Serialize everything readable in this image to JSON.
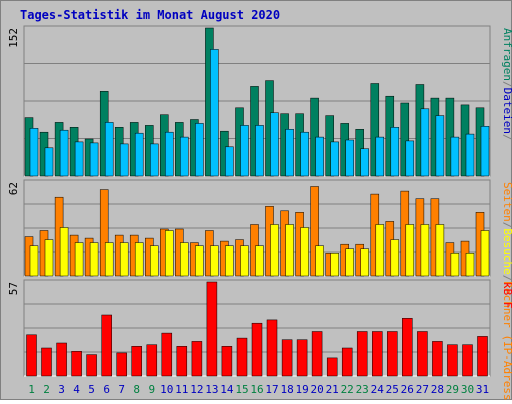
{
  "chart_data": {
    "type": "bar",
    "title": "Tages-Statistik im Monat August 2020",
    "categories": [
      "1",
      "2",
      "3",
      "4",
      "5",
      "6",
      "7",
      "8",
      "9",
      "10",
      "11",
      "12",
      "13",
      "14",
      "15",
      "16",
      "17",
      "18",
      "19",
      "20",
      "21",
      "22",
      "23",
      "24",
      "25",
      "26",
      "27",
      "28",
      "29",
      "30",
      "31"
    ],
    "weekend_days": [
      "1",
      "2",
      "8",
      "9",
      "15",
      "16",
      "22",
      "23",
      "29",
      "30"
    ],
    "colors": {
      "background": "#c0c0c0",
      "frame": "#808080",
      "title": "#0000c0",
      "grid": "#808080",
      "weekday_label": "#0000c0",
      "weekend_label": "#008040",
      "anfragen": "#008060",
      "dateien": "#00c0ff",
      "seiten": "#ff8000",
      "rechner": "#ffff00",
      "kbf": "#ff0000"
    },
    "panels": [
      {
        "name": "hits",
        "max_label": "152",
        "ymax": 152,
        "legend": [
          {
            "text": "Anfragen",
            "color": "#008060"
          },
          {
            "text": "/",
            "color": "#808080"
          },
          {
            "text": "Dateien",
            "color": "#0000c0"
          },
          {
            "text": "/",
            "color": "#808080"
          }
        ],
        "series": [
          {
            "name": "Anfragen",
            "color": "#008060",
            "values": [
              60,
              45,
              55,
              50,
              38,
              87,
              50,
              55,
              52,
              63,
              55,
              58,
              152,
              46,
              70,
              92,
              98,
              64,
              64,
              80,
              62,
              54,
              48,
              95,
              82,
              75,
              94,
              80,
              80,
              73,
              70
            ]
          },
          {
            "name": "Dateien",
            "color": "#00c0ff",
            "values": [
              49,
              29,
              47,
              35,
              34,
              55,
              33,
              44,
              33,
              45,
              40,
              54,
              130,
              30,
              52,
              52,
              65,
              48,
              45,
              40,
              35,
              37,
              28,
              40,
              50,
              36,
              69,
              62,
              40,
              43,
              51
            ]
          }
        ]
      },
      {
        "name": "visits",
        "max_label": "62",
        "ymax": 62,
        "legend": [
          {
            "text": "Seiten",
            "color": "#ff8000"
          },
          {
            "text": "/",
            "color": "#808080"
          },
          {
            "text": "Besuche",
            "color": "#ffff00"
          },
          {
            "text": "/",
            "color": "#808080"
          },
          {
            "text": "Rechner (IP-Adressen)",
            "color": "#ff8000"
          }
        ],
        "series": [
          {
            "name": "Seiten",
            "color": "#ff8000",
            "values": [
              26,
              30,
              52,
              27,
              25,
              57,
              27,
              27,
              25,
              31,
              31,
              22,
              30,
              23,
              24,
              34,
              46,
              43,
              42,
              59,
              15,
              21,
              21,
              54,
              36,
              56,
              51,
              51,
              22,
              23,
              42
            ]
          },
          {
            "name": "Rechner",
            "color": "#ffff00",
            "values": [
              20,
              24,
              32,
              22,
              22,
              22,
              22,
              22,
              20,
              30,
              22,
              20,
              20,
              20,
              20,
              20,
              34,
              34,
              32,
              20,
              15,
              18,
              18,
              34,
              24,
              34,
              34,
              34,
              15,
              15,
              30
            ]
          }
        ]
      },
      {
        "name": "traffic",
        "max_label": "57",
        "ymax": 57,
        "legend": [
          {
            "text": "kB F",
            "color": "#ff0000"
          }
        ],
        "series": [
          {
            "name": "kB F",
            "color": "#ff0000",
            "values": [
              25,
              17,
              20,
              15,
              13,
              37,
              14,
              18,
              19,
              26,
              18,
              21,
              57,
              18,
              23,
              32,
              34,
              22,
              22,
              27,
              11,
              17,
              27,
              27,
              27,
              35,
              27,
              21,
              19,
              19,
              24
            ]
          }
        ]
      }
    ]
  }
}
